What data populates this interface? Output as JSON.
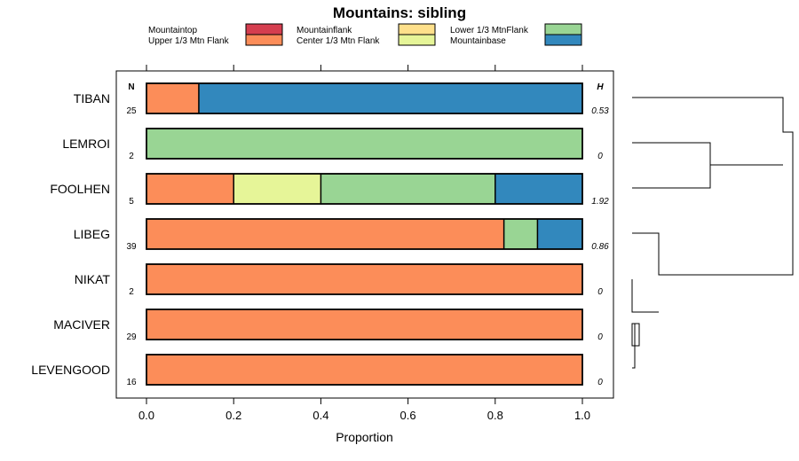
{
  "chart_data": {
    "type": "stacked-bar",
    "title": "Mountains: sibling",
    "xlabel": "Proportion",
    "xlim": [
      0,
      1
    ],
    "x_ticks": [
      "0.0",
      "0.2",
      "0.4",
      "0.6",
      "0.8",
      "1.0"
    ],
    "n_header": "N",
    "h_header": "H",
    "legend": [
      {
        "label": "Mountaintop",
        "color": "#d53e4f"
      },
      {
        "label": "Upper 1/3 Mtn Flank",
        "color": "#fc8d59"
      },
      {
        "label": "Mountainflank",
        "color": "#fee08b"
      },
      {
        "label": "Center 1/3 Mtn Flank",
        "color": "#e6f598"
      },
      {
        "label": "Lower 1/3 MtnFlank",
        "color": "#99d594"
      },
      {
        "label": "Mountainbase",
        "color": "#3288bd"
      }
    ],
    "rows": [
      {
        "category": "TIBAN",
        "n": "25",
        "h": "0.53",
        "values": [
          0,
          0.12,
          0,
          0,
          0,
          0.88
        ]
      },
      {
        "category": "LEMROI",
        "n": "2",
        "h": "0",
        "values": [
          0,
          0,
          0,
          0,
          1.0,
          0
        ]
      },
      {
        "category": "FOOLHEN",
        "n": "5",
        "h": "1.92",
        "values": [
          0,
          0.2,
          0,
          0.2,
          0.4,
          0.2
        ]
      },
      {
        "category": "LIBEG",
        "n": "39",
        "h": "0.86",
        "values": [
          0,
          0.82,
          0,
          0,
          0.077,
          0.103
        ]
      },
      {
        "category": "NIKAT",
        "n": "2",
        "h": "0",
        "values": [
          0,
          1.0,
          0,
          0,
          0,
          0
        ]
      },
      {
        "category": "MACIVER",
        "n": "29",
        "h": "0",
        "values": [
          0,
          1.0,
          0,
          0,
          0,
          0
        ]
      },
      {
        "category": "LEVENGOOD",
        "n": "16",
        "h": "0",
        "values": [
          0,
          1.0,
          0,
          0,
          0,
          0
        ]
      }
    ]
  }
}
